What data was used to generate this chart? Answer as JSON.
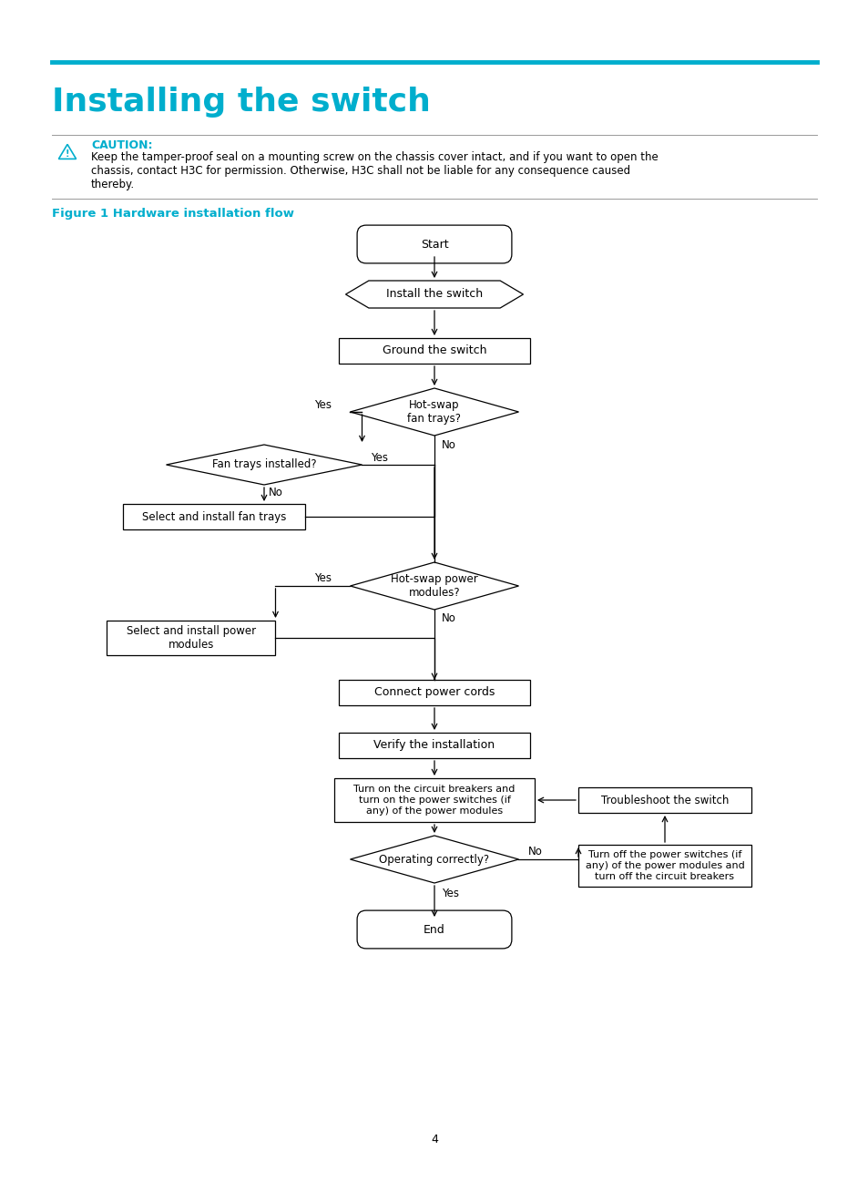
{
  "title": "Installing the switch",
  "title_color": "#00AECD",
  "title_line_color": "#00AECD",
  "caution_color": "#00AECD",
  "caution_text": "CAUTION:",
  "caution_body": "Keep the tamper-proof seal on a mounting screw on the chassis cover intact, and if you want to open the\nchassis, contact H3C for permission. Otherwise, H3C shall not be liable for any consequence caused\nthereby.",
  "figure_label": "Figure 1 Hardware installation flow",
  "figure_label_color": "#00AECD",
  "page_number": "4",
  "background_color": "#ffffff"
}
